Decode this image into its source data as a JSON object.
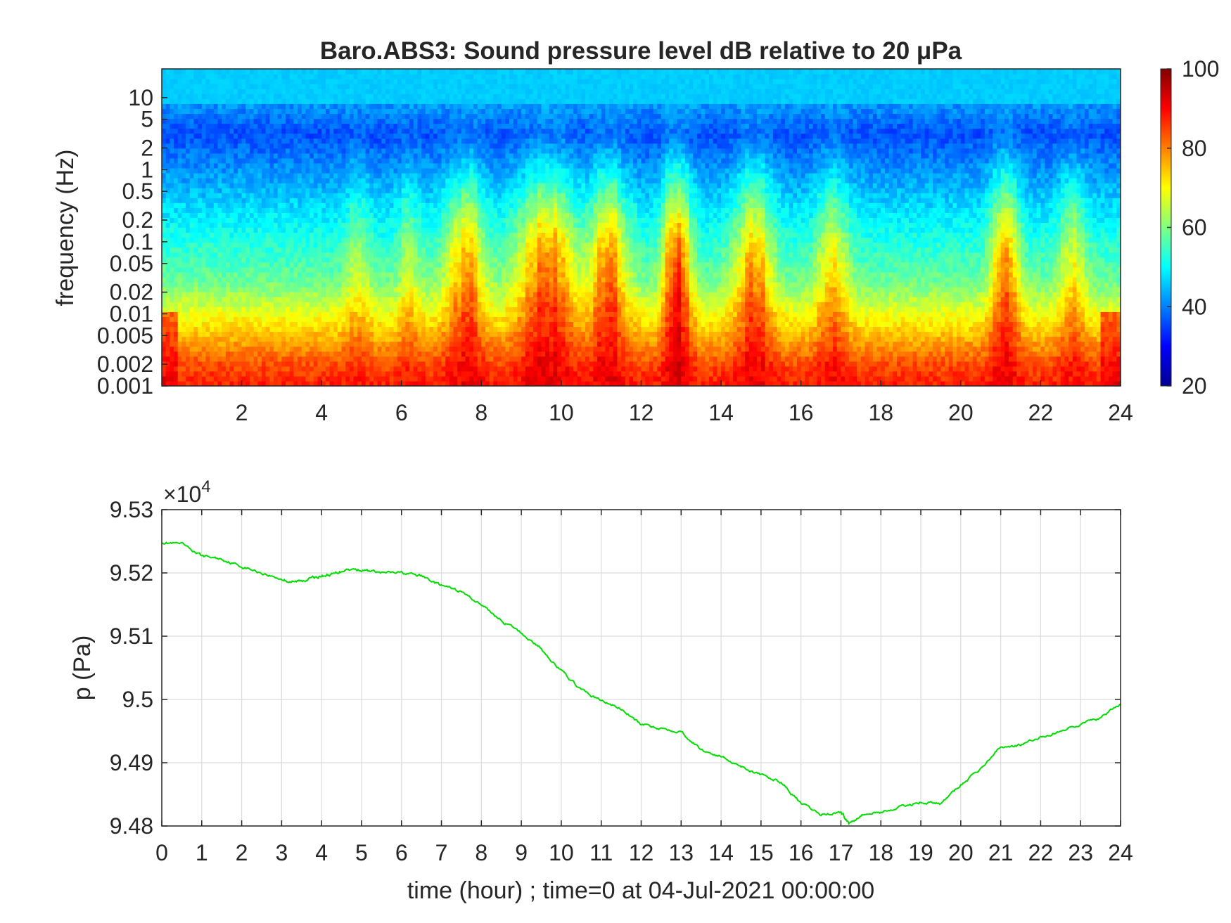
{
  "chart_data": [
    {
      "type": "heatmap",
      "title": "Baro.ABS3: Sound pressure level dB relative to 20 μPa",
      "ylabel": "frequency (Hz)",
      "xlim": [
        0,
        24
      ],
      "xtick_labels": [
        "2",
        "4",
        "6",
        "8",
        "10",
        "12",
        "14",
        "16",
        "18",
        "20",
        "22",
        "24"
      ],
      "xticks": [
        2,
        4,
        6,
        8,
        10,
        12,
        14,
        16,
        18,
        20,
        22,
        24
      ],
      "ylim": [
        0.001,
        25
      ],
      "yscale": "log",
      "yticks": [
        0.001,
        0.002,
        0.005,
        0.01,
        0.02,
        0.05,
        0.1,
        0.2,
        0.5,
        1,
        2,
        5,
        10
      ],
      "ytick_labels": [
        "0.001",
        "0.002",
        "0.005",
        "0.01",
        "0.02",
        "0.05",
        "0.1",
        "0.2",
        "0.5",
        "1",
        "2",
        "5",
        "10"
      ],
      "colorbar": {
        "range": [
          20,
          100
        ],
        "ticks": [
          20,
          40,
          60,
          80,
          100
        ],
        "tick_labels": [
          "20",
          "40",
          "60",
          "80",
          "100"
        ],
        "colormap": "jet"
      },
      "activity_hours": [
        {
          "center": 4.9,
          "width": 0.3,
          "strength": 0.35
        },
        {
          "center": 6.2,
          "width": 0.3,
          "strength": 0.35
        },
        {
          "center": 7.6,
          "width": 0.5,
          "strength": 0.8
        },
        {
          "center": 9.6,
          "width": 0.7,
          "strength": 1.0
        },
        {
          "center": 11.2,
          "width": 0.5,
          "strength": 0.85
        },
        {
          "center": 12.9,
          "width": 0.35,
          "strength": 1.2
        },
        {
          "center": 14.8,
          "width": 0.5,
          "strength": 0.85
        },
        {
          "center": 16.8,
          "width": 0.4,
          "strength": 0.65
        },
        {
          "center": 21.1,
          "width": 0.35,
          "strength": 0.9
        },
        {
          "center": 22.8,
          "width": 0.35,
          "strength": 0.5
        }
      ]
    },
    {
      "type": "line",
      "xlabel": "time (hour) ; time=0 at 04-Jul-2021 00:00:00",
      "ylabel": "p (Pa)",
      "exponent_label": "×10",
      "exponent_power": "4",
      "xlim": [
        0,
        24
      ],
      "ylim": [
        9.48,
        9.53
      ],
      "grid": true,
      "xtick_labels": [
        "0",
        "1",
        "2",
        "3",
        "4",
        "5",
        "6",
        "7",
        "8",
        "9",
        "10",
        "11",
        "12",
        "13",
        "14",
        "15",
        "16",
        "17",
        "18",
        "19",
        "20",
        "21",
        "22",
        "23",
        "24"
      ],
      "xticks": [
        0,
        1,
        2,
        3,
        4,
        5,
        6,
        7,
        8,
        9,
        10,
        11,
        12,
        13,
        14,
        15,
        16,
        17,
        18,
        19,
        20,
        21,
        22,
        23,
        24
      ],
      "yticks": [
        9.48,
        9.49,
        9.5,
        9.51,
        9.52,
        9.53
      ],
      "ytick_labels": [
        "9.48",
        "9.49",
        "9.5",
        "9.51",
        "9.52",
        "9.53"
      ],
      "line_color": "#00dd00",
      "series": [
        {
          "x": [
            0,
            0.5,
            1,
            1.5,
            2,
            2.5,
            3,
            3.3,
            3.6,
            4,
            4.3,
            4.6,
            5,
            5.5,
            6,
            6.5,
            7,
            7.5,
            8,
            8.5,
            9,
            9.5,
            10,
            10.5,
            11,
            11.5,
            12,
            12.5,
            13,
            13.5,
            14,
            14.5,
            15,
            15.5,
            16,
            16.5,
            17,
            17.2,
            17.5,
            18,
            18.5,
            19,
            19.5,
            20,
            20.5,
            21,
            21.5,
            22,
            22.5,
            23,
            23.5,
            24
          ],
          "y": [
            9.5249,
            9.5245,
            9.5227,
            9.5222,
            9.521,
            9.52,
            9.519,
            9.5185,
            9.519,
            9.5195,
            9.5198,
            9.5206,
            9.5205,
            9.52,
            9.52,
            9.5195,
            9.518,
            9.517,
            9.515,
            9.5125,
            9.5105,
            9.508,
            9.5045,
            9.5015,
            9.4998,
            9.4985,
            9.496,
            9.4955,
            9.495,
            9.492,
            9.491,
            9.4895,
            9.488,
            9.487,
            9.4835,
            9.4818,
            9.4822,
            9.4804,
            9.4818,
            9.4822,
            9.483,
            9.4838,
            9.4835,
            9.4865,
            9.489,
            9.4925,
            9.4928,
            9.494,
            9.495,
            9.4962,
            9.497,
            9.4993
          ]
        }
      ]
    }
  ]
}
